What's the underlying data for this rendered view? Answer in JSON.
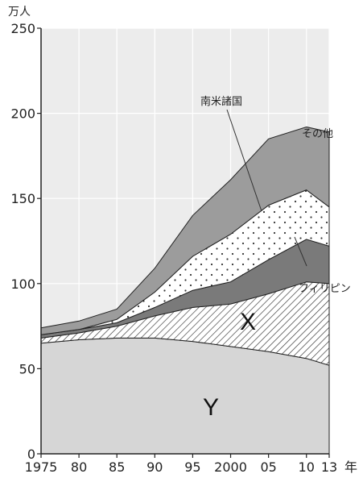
{
  "chart_data": {
    "type": "area",
    "stacked": true,
    "unit_label": "万人",
    "year_label": "年",
    "x": [
      1975,
      1980,
      1985,
      1990,
      1995,
      2000,
      2005,
      2010,
      2013
    ],
    "x_tick_labels": [
      "1975",
      "80",
      "85",
      "90",
      "95",
      "2000",
      "05",
      "10",
      "13"
    ],
    "ylim": [
      0,
      250
    ],
    "y_ticks": [
      0,
      50,
      100,
      150,
      200,
      250
    ],
    "y_tick_labels": [
      "0",
      "50",
      "100",
      "150",
      "200",
      "250"
    ],
    "series": [
      {
        "key": "Y",
        "values": [
          65,
          67,
          68,
          68,
          66,
          63,
          60,
          56,
          52
        ],
        "fill": "#d6d6d6",
        "pattern": "none"
      },
      {
        "key": "X",
        "values": [
          3,
          4,
          7,
          13,
          20,
          25,
          34,
          45,
          48
        ],
        "fill": "#ffffff",
        "pattern": "hatch"
      },
      {
        "name": "フィリピン",
        "values": [
          2,
          2,
          2,
          5,
          10,
          13,
          20,
          25,
          22
        ],
        "fill": "#7a7a7a",
        "pattern": "none"
      },
      {
        "name": "南米諸国",
        "values": [
          0,
          0,
          2,
          9,
          20,
          28,
          32,
          29,
          23
        ],
        "fill": "#ffffff",
        "pattern": "dots"
      },
      {
        "name": "その他",
        "values": [
          4,
          5,
          6,
          14,
          24,
          32,
          39,
          37,
          44
        ],
        "fill": "#9c9c9c",
        "pattern": "none"
      }
    ],
    "annotations": [
      {
        "text": "南米諸国",
        "target_series": 3
      },
      {
        "text": "その他"
      },
      {
        "text": "フィリピン",
        "target_series": 2
      },
      {
        "text": "X"
      },
      {
        "text": "Y"
      }
    ],
    "grid": true
  }
}
